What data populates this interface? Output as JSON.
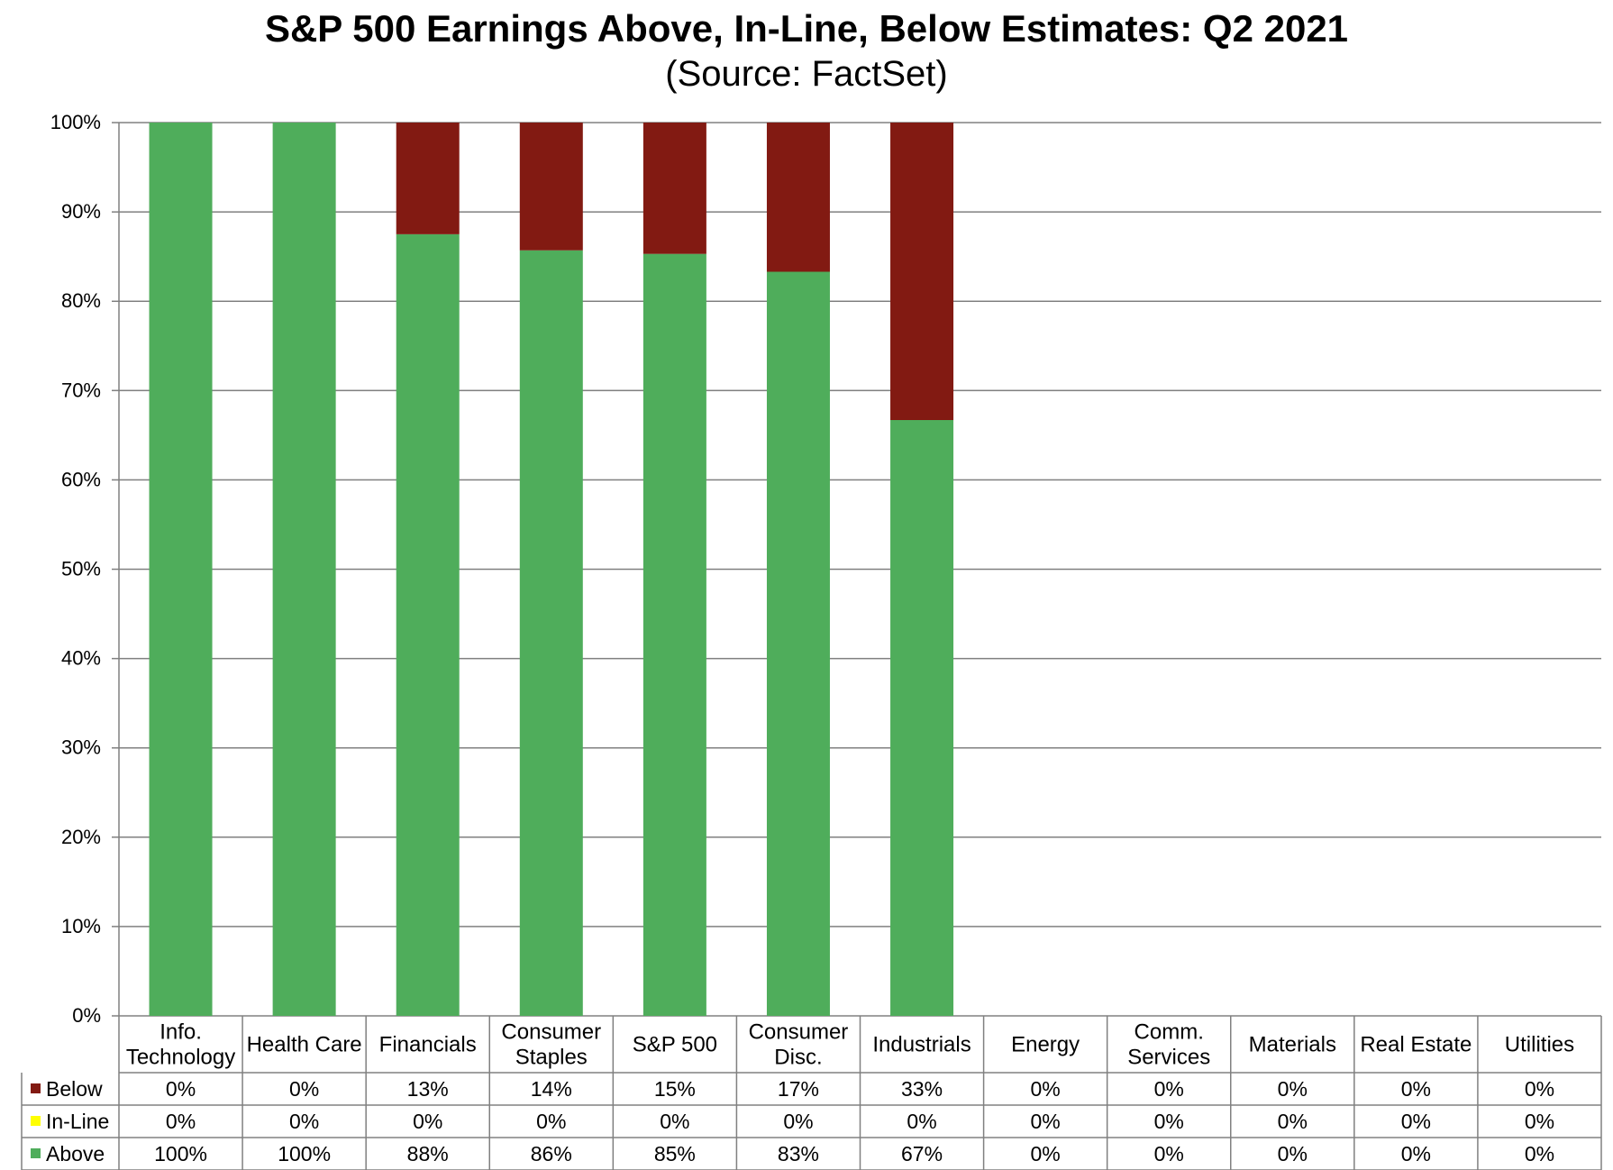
{
  "chart_data": {
    "type": "bar",
    "stacked": true,
    "title": "S&P 500 Earnings Above, In-Line, Below Estimates: Q2 2021",
    "subtitle": "(Source: FactSet)",
    "ylim": [
      0,
      100
    ],
    "y_ticks": [
      "0%",
      "10%",
      "20%",
      "30%",
      "40%",
      "50%",
      "60%",
      "70%",
      "80%",
      "90%",
      "100%"
    ],
    "grid": "horizontal",
    "legend": "data-table-left",
    "categories": [
      [
        "Info.",
        "Technology"
      ],
      [
        "Health Care"
      ],
      [
        "Financials"
      ],
      [
        "Consumer",
        "Staples"
      ],
      [
        "S&P 500"
      ],
      [
        "Consumer",
        "Disc."
      ],
      [
        "Industrials"
      ],
      [
        "Energy"
      ],
      [
        "Comm.",
        "Services"
      ],
      [
        "Materials"
      ],
      [
        "Real Estate"
      ],
      [
        "Utilities"
      ]
    ],
    "series": [
      {
        "name": "Below",
        "color": "#821a12",
        "values": [
          0,
          0,
          12.5,
          14.3,
          14.7,
          16.7,
          33.3,
          0,
          0,
          0,
          0,
          0
        ],
        "labels": [
          "0%",
          "0%",
          "13%",
          "14%",
          "15%",
          "17%",
          "33%",
          "0%",
          "0%",
          "0%",
          "0%",
          "0%"
        ]
      },
      {
        "name": "In-Line",
        "color": "#ffff00",
        "values": [
          0,
          0,
          0,
          0,
          0,
          0,
          0,
          0,
          0,
          0,
          0,
          0
        ],
        "labels": [
          "0%",
          "0%",
          "0%",
          "0%",
          "0%",
          "0%",
          "0%",
          "0%",
          "0%",
          "0%",
          "0%",
          "0%"
        ]
      },
      {
        "name": "Above",
        "color": "#4fad5b",
        "values": [
          100,
          100,
          87.5,
          85.7,
          85.3,
          83.3,
          66.7,
          0,
          0,
          0,
          0,
          0
        ],
        "labels": [
          "100%",
          "100%",
          "88%",
          "86%",
          "85%",
          "83%",
          "67%",
          "0%",
          "0%",
          "0%",
          "0%",
          "0%"
        ]
      }
    ],
    "stack_order_bottom_to_top": [
      "Above",
      "In-Line",
      "Below"
    ]
  }
}
